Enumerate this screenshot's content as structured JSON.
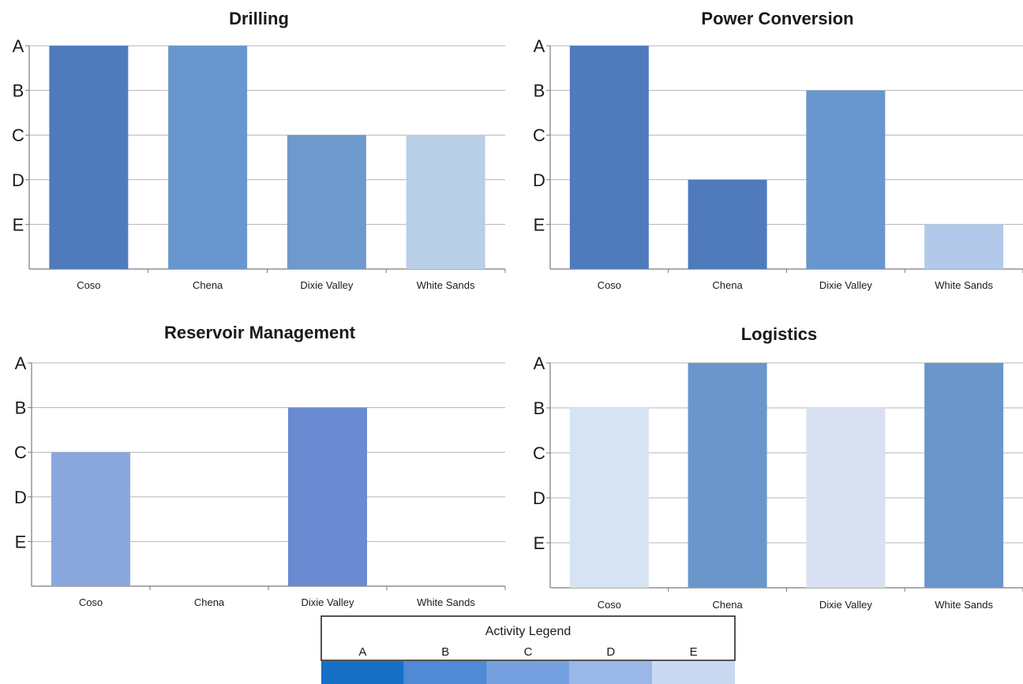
{
  "chart_data": [
    {
      "type": "bar",
      "title": "Drilling",
      "categories": [
        "Coso",
        "Chena",
        "Dixie Valley",
        "White Sands"
      ],
      "values": [
        "A",
        "A",
        "C",
        "C"
      ],
      "bar_colors": [
        "#4f7bbd",
        "#6996ce",
        "#6e99cc",
        "#b9cfe8"
      ],
      "y_levels": [
        "A",
        "B",
        "C",
        "D",
        "E"
      ],
      "grid": true
    },
    {
      "type": "bar",
      "title": "Power Conversion",
      "categories": [
        "Coso",
        "Chena",
        "Dixie Valley",
        "White Sands"
      ],
      "values": [
        "A",
        "D",
        "B",
        "E"
      ],
      "bar_colors": [
        "#4f7bbd",
        "#4f7bbd",
        "#6996ce",
        "#b3c9e9"
      ],
      "y_levels": [
        "A",
        "B",
        "C",
        "D",
        "E"
      ],
      "grid": true
    },
    {
      "type": "bar",
      "title": "Reservoir Management",
      "categories": [
        "Coso",
        "Chena",
        "Dixie Valley",
        "White Sands"
      ],
      "values": [
        "C",
        null,
        "B",
        null
      ],
      "bar_colors": [
        "#8aa7dd",
        null,
        "#6a8ad2",
        null
      ],
      "y_levels": [
        "A",
        "B",
        "C",
        "D",
        "E"
      ],
      "grid": true
    },
    {
      "type": "bar",
      "title": "Logistics",
      "categories": [
        "Coso",
        "Chena",
        "Dixie Valley",
        "White Sands"
      ],
      "values": [
        "B",
        "A",
        "B",
        "A"
      ],
      "bar_colors": [
        "#d6e3f2",
        "#6b96cb",
        "#d8e0f1",
        "#6b96cb"
      ],
      "y_levels": [
        "A",
        "B",
        "C",
        "D",
        "E"
      ],
      "grid": true
    }
  ],
  "legend": {
    "title": "Activity Legend",
    "items": [
      {
        "label": "A",
        "color": "#1670c6"
      },
      {
        "label": "B",
        "color": "#5089d6"
      },
      {
        "label": "C",
        "color": "#76a1e0"
      },
      {
        "label": "D",
        "color": "#99b8e8"
      },
      {
        "label": "E",
        "color": "#c8d9f1"
      }
    ]
  }
}
